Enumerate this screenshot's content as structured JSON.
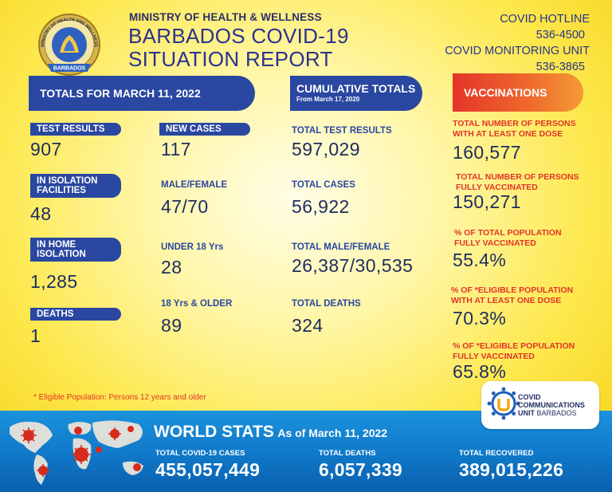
{
  "header": {
    "seal_text_top": "MINISTRY OF HEALTH AND WELLNESS",
    "seal_text_bottom": "BARBADOS",
    "ministry": "MINISTRY OF HEALTH & WELLNESS",
    "title_line1": "BARBADOS COVID-19",
    "title_line2": "SITUATION REPORT",
    "hotline_label": "COVID HOTLINE",
    "hotline_number": "536-4500",
    "monitoring_label": "COVID MONITORING UNIT",
    "monitoring_number": "536-3865"
  },
  "totals": {
    "banner": "TOTALS FOR MARCH 11, 2022",
    "test_results_label": "TEST RESULTS",
    "test_results_value": "907",
    "isolation_label_1": "IN ISOLATION",
    "isolation_label_2": "FACILITIES",
    "isolation_value": "48",
    "home_label_1": "IN HOME",
    "home_label_2": "ISOLATION",
    "home_value": "1,285",
    "deaths_label": "DEATHS",
    "deaths_value": "1",
    "new_cases_label": "NEW CASES",
    "new_cases_value": "117",
    "male_female_label": "MALE/FEMALE",
    "male_female_value": "47/70",
    "under18_label": "UNDER 18 Yrs",
    "under18_value": "28",
    "over18_label": "18 Yrs & OLDER",
    "over18_value": "89"
  },
  "cumulative": {
    "banner": "CUMULATIVE TOTALS",
    "banner_sub": "From March 17, 2020",
    "test_results_label": "TOTAL TEST RESULTS",
    "test_results_value": "597,029",
    "cases_label": "TOTAL CASES",
    "cases_value": "56,922",
    "male_female_label": "TOTAL MALE/FEMALE",
    "male_female_value": "26,387/30,535",
    "deaths_label": "TOTAL DEATHS",
    "deaths_value": "324"
  },
  "vaccinations": {
    "banner": "VACCINATIONS",
    "items": [
      {
        "label_1": "TOTAL NUMBER OF PERSONS",
        "label_2": "WITH AT LEAST ONE DOSE",
        "value": "160,577"
      },
      {
        "label_1": "TOTAL NUMBER OF PERSONS",
        "label_2": "FULLY VACCINATED",
        "value": "150,271"
      },
      {
        "label_1": "% OF TOTAL POPULATION",
        "label_2": "FULLY VACCINATED",
        "value": "55.4%"
      },
      {
        "label_1": "% OF *ELIGIBLE POPULATION",
        "label_2": "WITH AT LEAST ONE DOSE",
        "value": "70.3%"
      },
      {
        "label_1": "% OF *ELIGIBLE POPULATION",
        "label_2": "FULLY VACCINATED",
        "value": "65.8%"
      }
    ]
  },
  "footnote": "* Eligible Population: Persons 12 years and older",
  "world": {
    "title": "WORLD STATS",
    "as_of": "As of March 11, 2022",
    "cases_label": "TOTAL COVID-19 CASES",
    "cases_value": "455,057,449",
    "deaths_label": "TOTAL DEATHS",
    "deaths_value": "6,057,339",
    "recovered_label": "TOTAL RECOVERED",
    "recovered_value": "389,015,226"
  },
  "badge": {
    "line1": "COVID",
    "line2": "COMMUNICATIONS",
    "line3_bold": "UNIT",
    "line3_rest": " BARBADOS"
  },
  "colors": {
    "navy": "#2a47a1",
    "red": "#e2342b",
    "band_blue": "#0f78c8",
    "background_yellow": "#fde84d"
  }
}
